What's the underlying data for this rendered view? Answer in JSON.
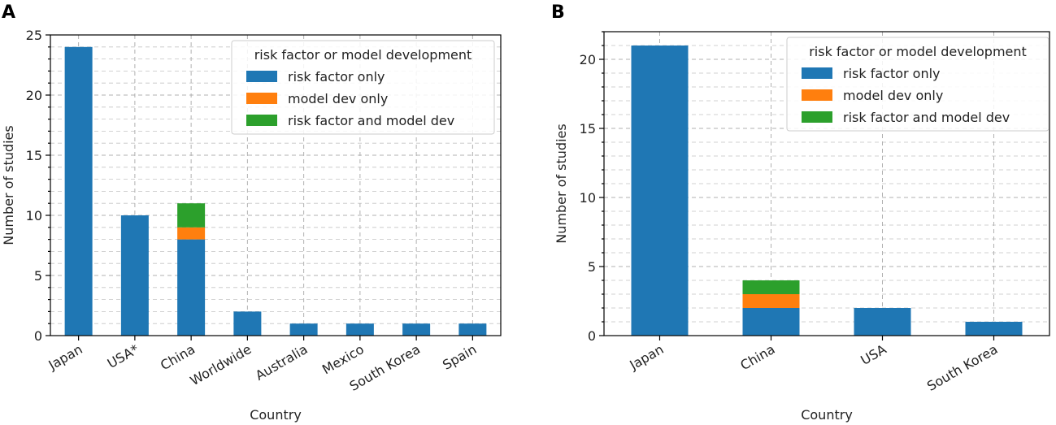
{
  "chart_data": [
    {
      "panel": "A",
      "type": "bar",
      "stacked": true,
      "categories": [
        "Japan",
        "USA*",
        "China",
        "Worldwide",
        "Australia",
        "Mexico",
        "South Korea",
        "Spain"
      ],
      "series": [
        {
          "name": "risk factor only",
          "color": "#1f77b4",
          "values": [
            24,
            10,
            8,
            2,
            1,
            1,
            1,
            1
          ]
        },
        {
          "name": "model dev only",
          "color": "#ff7f0e",
          "values": [
            0,
            0,
            1,
            0,
            0,
            0,
            0,
            0
          ]
        },
        {
          "name": "risk factor and model dev",
          "color": "#2ca02c",
          "values": [
            0,
            0,
            2,
            0,
            0,
            0,
            0,
            0
          ]
        }
      ],
      "xlabel": "Country",
      "ylabel": "Number of studies",
      "ylim": [
        0,
        25
      ],
      "yticks": [
        0,
        5,
        10,
        15,
        20,
        25
      ],
      "minor_step": 1,
      "grid": true,
      "legend_title": "risk factor or model development",
      "legend_position": "top-right"
    },
    {
      "panel": "B",
      "type": "bar",
      "stacked": true,
      "categories": [
        "Japan",
        "China",
        "USA",
        "South Korea"
      ],
      "series": [
        {
          "name": "risk factor only",
          "color": "#1f77b4",
          "values": [
            21,
            2,
            2,
            1
          ]
        },
        {
          "name": "model dev only",
          "color": "#ff7f0e",
          "values": [
            0,
            1,
            0,
            0
          ]
        },
        {
          "name": "risk factor and model dev",
          "color": "#2ca02c",
          "values": [
            0,
            1,
            0,
            0
          ]
        }
      ],
      "xlabel": "Country",
      "ylabel": "Number of studies",
      "ylim": [
        0,
        22
      ],
      "yticks": [
        0,
        5,
        10,
        15,
        20
      ],
      "minor_step": 1,
      "grid": true,
      "legend_title": "risk factor or model development",
      "legend_position": "top-right"
    }
  ]
}
